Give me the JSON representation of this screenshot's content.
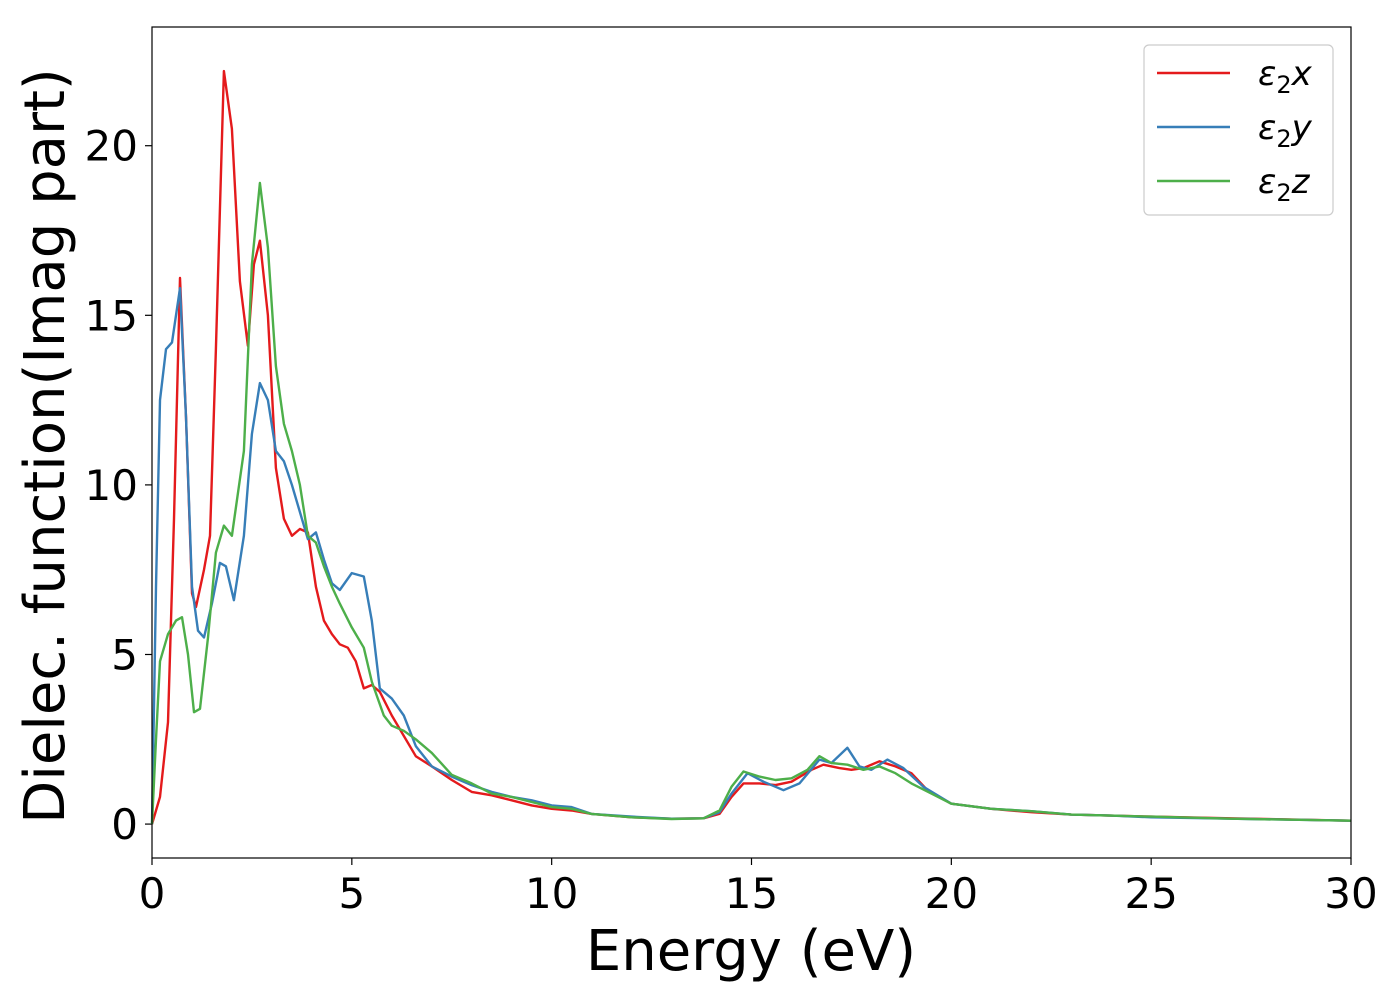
{
  "chart_data": {
    "type": "line",
    "title": "",
    "xlabel": "Energy (eV)",
    "ylabel": "Dielec. function(Imag part)",
    "xlim": [
      0,
      30
    ],
    "ylim": [
      -1,
      23.5
    ],
    "xticks": [
      0,
      5,
      10,
      15,
      20,
      25,
      30
    ],
    "yticks": [
      0,
      5,
      10,
      15,
      20
    ],
    "grid": false,
    "legend_position": "top-right",
    "series": [
      {
        "name": "ε₂x",
        "legend_base": "ε",
        "legend_sub": "2",
        "legend_tail": "x",
        "color": "#e41a1c",
        "points": [
          [
            0,
            0
          ],
          [
            0.2,
            0.8
          ],
          [
            0.4,
            3.0
          ],
          [
            0.55,
            9.0
          ],
          [
            0.7,
            16.1
          ],
          [
            0.85,
            12.0
          ],
          [
            1.0,
            6.8
          ],
          [
            1.1,
            6.4
          ],
          [
            1.3,
            7.5
          ],
          [
            1.45,
            8.5
          ],
          [
            1.6,
            14.0
          ],
          [
            1.8,
            22.2
          ],
          [
            2.0,
            20.5
          ],
          [
            2.2,
            16.0
          ],
          [
            2.4,
            14.1
          ],
          [
            2.55,
            16.5
          ],
          [
            2.7,
            17.2
          ],
          [
            2.9,
            15.0
          ],
          [
            3.1,
            10.5
          ],
          [
            3.3,
            9.0
          ],
          [
            3.5,
            8.5
          ],
          [
            3.7,
            8.7
          ],
          [
            3.9,
            8.6
          ],
          [
            4.1,
            7.0
          ],
          [
            4.3,
            6.0
          ],
          [
            4.5,
            5.6
          ],
          [
            4.7,
            5.3
          ],
          [
            4.9,
            5.2
          ],
          [
            5.1,
            4.8
          ],
          [
            5.3,
            4.0
          ],
          [
            5.5,
            4.1
          ],
          [
            5.7,
            3.9
          ],
          [
            6.0,
            3.2
          ],
          [
            6.3,
            2.6
          ],
          [
            6.6,
            2.0
          ],
          [
            7.0,
            1.7
          ],
          [
            7.5,
            1.3
          ],
          [
            8.0,
            0.95
          ],
          [
            8.5,
            0.85
          ],
          [
            9.0,
            0.7
          ],
          [
            9.5,
            0.55
          ],
          [
            10,
            0.45
          ],
          [
            10.5,
            0.4
          ],
          [
            11,
            0.3
          ],
          [
            12,
            0.2
          ],
          [
            13,
            0.16
          ],
          [
            13.8,
            0.17
          ],
          [
            14.2,
            0.3
          ],
          [
            14.5,
            0.8
          ],
          [
            14.8,
            1.2
          ],
          [
            15.2,
            1.2
          ],
          [
            15.6,
            1.15
          ],
          [
            16.0,
            1.25
          ],
          [
            16.5,
            1.6
          ],
          [
            16.8,
            1.75
          ],
          [
            17.2,
            1.65
          ],
          [
            17.5,
            1.6
          ],
          [
            17.8,
            1.65
          ],
          [
            18.2,
            1.85
          ],
          [
            18.6,
            1.7
          ],
          [
            19.0,
            1.5
          ],
          [
            19.4,
            1.0
          ],
          [
            20,
            0.6
          ],
          [
            21,
            0.45
          ],
          [
            22,
            0.35
          ],
          [
            23,
            0.28
          ],
          [
            25,
            0.22
          ],
          [
            27,
            0.17
          ],
          [
            30,
            0.1
          ]
        ]
      },
      {
        "name": "ε₂y",
        "legend_base": "ε",
        "legend_sub": "2",
        "legend_tail": "y",
        "color": "#377eb8",
        "points": [
          [
            0,
            0
          ],
          [
            0.1,
            7.0
          ],
          [
            0.2,
            12.5
          ],
          [
            0.35,
            14.0
          ],
          [
            0.5,
            14.2
          ],
          [
            0.7,
            15.8
          ],
          [
            0.85,
            12.0
          ],
          [
            1.0,
            7.0
          ],
          [
            1.15,
            5.7
          ],
          [
            1.3,
            5.5
          ],
          [
            1.5,
            6.5
          ],
          [
            1.7,
            7.7
          ],
          [
            1.85,
            7.6
          ],
          [
            2.05,
            6.6
          ],
          [
            2.3,
            8.5
          ],
          [
            2.5,
            11.5
          ],
          [
            2.7,
            13.0
          ],
          [
            2.9,
            12.5
          ],
          [
            3.1,
            11.0
          ],
          [
            3.3,
            10.7
          ],
          [
            3.5,
            10.0
          ],
          [
            3.7,
            9.2
          ],
          [
            3.9,
            8.4
          ],
          [
            4.1,
            8.6
          ],
          [
            4.3,
            7.8
          ],
          [
            4.5,
            7.1
          ],
          [
            4.7,
            6.9
          ],
          [
            5.0,
            7.4
          ],
          [
            5.3,
            7.3
          ],
          [
            5.5,
            6.0
          ],
          [
            5.7,
            4.0
          ],
          [
            6.0,
            3.7
          ],
          [
            6.3,
            3.2
          ],
          [
            6.6,
            2.3
          ],
          [
            7.0,
            1.7
          ],
          [
            7.5,
            1.4
          ],
          [
            8.0,
            1.15
          ],
          [
            8.5,
            0.95
          ],
          [
            9.0,
            0.8
          ],
          [
            9.5,
            0.7
          ],
          [
            10,
            0.55
          ],
          [
            10.5,
            0.5
          ],
          [
            11,
            0.3
          ],
          [
            12,
            0.22
          ],
          [
            13,
            0.16
          ],
          [
            13.8,
            0.17
          ],
          [
            14.2,
            0.35
          ],
          [
            14.5,
            0.9
          ],
          [
            14.9,
            1.5
          ],
          [
            15.3,
            1.25
          ],
          [
            15.8,
            1.0
          ],
          [
            16.2,
            1.2
          ],
          [
            16.7,
            1.9
          ],
          [
            17.0,
            1.8
          ],
          [
            17.4,
            2.25
          ],
          [
            17.7,
            1.7
          ],
          [
            18.0,
            1.6
          ],
          [
            18.4,
            1.9
          ],
          [
            18.8,
            1.65
          ],
          [
            19.3,
            1.1
          ],
          [
            20,
            0.6
          ],
          [
            21,
            0.45
          ],
          [
            22,
            0.38
          ],
          [
            23,
            0.28
          ],
          [
            24,
            0.25
          ],
          [
            25,
            0.2
          ],
          [
            27,
            0.16
          ],
          [
            30,
            0.1
          ]
        ]
      },
      {
        "name": "ε₂z",
        "legend_base": "ε",
        "legend_sub": "2",
        "legend_tail": "z",
        "color": "#4daf4a",
        "points": [
          [
            0,
            0
          ],
          [
            0.1,
            2.5
          ],
          [
            0.2,
            4.8
          ],
          [
            0.4,
            5.6
          ],
          [
            0.6,
            6.0
          ],
          [
            0.75,
            6.1
          ],
          [
            0.9,
            5.0
          ],
          [
            1.05,
            3.3
          ],
          [
            1.2,
            3.4
          ],
          [
            1.4,
            5.5
          ],
          [
            1.6,
            8.0
          ],
          [
            1.8,
            8.8
          ],
          [
            2.0,
            8.5
          ],
          [
            2.3,
            11.0
          ],
          [
            2.5,
            16.5
          ],
          [
            2.7,
            18.9
          ],
          [
            2.9,
            17.0
          ],
          [
            3.1,
            13.5
          ],
          [
            3.3,
            11.8
          ],
          [
            3.5,
            11.0
          ],
          [
            3.7,
            10.0
          ],
          [
            3.9,
            8.5
          ],
          [
            4.1,
            8.3
          ],
          [
            4.3,
            7.6
          ],
          [
            4.5,
            7.0
          ],
          [
            4.7,
            6.5
          ],
          [
            5.0,
            5.8
          ],
          [
            5.3,
            5.2
          ],
          [
            5.5,
            4.2
          ],
          [
            5.8,
            3.2
          ],
          [
            6.0,
            2.9
          ],
          [
            6.3,
            2.75
          ],
          [
            6.6,
            2.5
          ],
          [
            7.0,
            2.1
          ],
          [
            7.5,
            1.45
          ],
          [
            8.0,
            1.2
          ],
          [
            8.5,
            0.9
          ],
          [
            9.0,
            0.8
          ],
          [
            9.5,
            0.65
          ],
          [
            10,
            0.5
          ],
          [
            10.5,
            0.45
          ],
          [
            11,
            0.3
          ],
          [
            12,
            0.2
          ],
          [
            13,
            0.15
          ],
          [
            13.8,
            0.17
          ],
          [
            14.2,
            0.4
          ],
          [
            14.5,
            1.1
          ],
          [
            14.8,
            1.55
          ],
          [
            15.2,
            1.4
          ],
          [
            15.6,
            1.3
          ],
          [
            16.0,
            1.35
          ],
          [
            16.4,
            1.6
          ],
          [
            16.7,
            2.0
          ],
          [
            17.0,
            1.8
          ],
          [
            17.4,
            1.75
          ],
          [
            17.8,
            1.6
          ],
          [
            18.2,
            1.7
          ],
          [
            18.6,
            1.5
          ],
          [
            19.0,
            1.2
          ],
          [
            19.5,
            0.9
          ],
          [
            20,
            0.6
          ],
          [
            21,
            0.45
          ],
          [
            22,
            0.38
          ],
          [
            23,
            0.28
          ],
          [
            25,
            0.22
          ],
          [
            27,
            0.16
          ],
          [
            30,
            0.1
          ]
        ]
      }
    ]
  }
}
